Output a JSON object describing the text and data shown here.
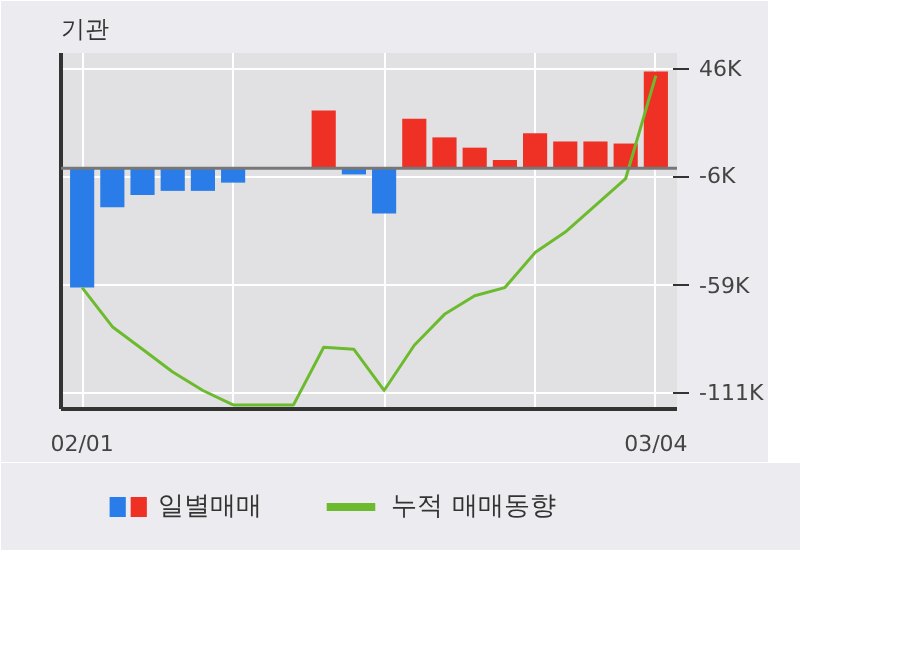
{
  "chart_data": {
    "type": "bar",
    "title": "기관",
    "categories": [
      "02/01",
      null,
      null,
      null,
      null,
      null,
      null,
      null,
      null,
      null,
      null,
      null,
      null,
      null,
      null,
      null,
      null,
      null,
      null,
      "03/04"
    ],
    "series": [
      {
        "name": "일별매매",
        "base": [
          -2,
          -2,
          -2,
          -2,
          -2,
          -2,
          null,
          null,
          -2,
          -2,
          -2,
          -2,
          -2,
          -2,
          -2,
          -2,
          -2,
          -2,
          -2,
          -2
        ],
        "values": [
          -58,
          -19,
          -13,
          -11,
          -11,
          -7,
          null,
          null,
          28,
          -3,
          -22,
          24,
          15,
          10,
          4,
          17,
          13,
          13,
          12,
          47
        ],
        "colors": [
          "#2a7de8",
          "#2a7de8",
          "#2a7de8",
          "#2a7de8",
          "#2a7de8",
          "#2a7de8",
          "#2a7de8",
          "#2a7de8",
          "#ee3124",
          "#2a7de8",
          "#2a7de8",
          "#ee3124",
          "#ee3124",
          "#ee3124",
          "#ee3124",
          "#ee3124",
          "#ee3124",
          "#ee3124",
          "#ee3124",
          "#ee3124"
        ]
      },
      {
        "name": "누적 매매동향",
        "type": "line",
        "color": "#6cbb2e",
        "values": [
          -60,
          -79,
          -90,
          -101,
          -110,
          -117,
          -117,
          -117,
          -89,
          -90,
          -110,
          -88,
          -73,
          -64,
          -60,
          -43,
          -33,
          -20,
          -7,
          43
        ]
      }
    ],
    "ylim": [
      -119,
      54
    ],
    "yticks": [
      {
        "value": 46,
        "label": "46K"
      },
      {
        "value": -6,
        "label": "-6K"
      },
      {
        "value": -59,
        "label": "-59K"
      },
      {
        "value": -111,
        "label": "-111K"
      }
    ],
    "ref_lines": [
      {
        "axis": "y",
        "value": -2,
        "color": "#777777"
      }
    ],
    "grid": true,
    "legend": "bottom"
  }
}
